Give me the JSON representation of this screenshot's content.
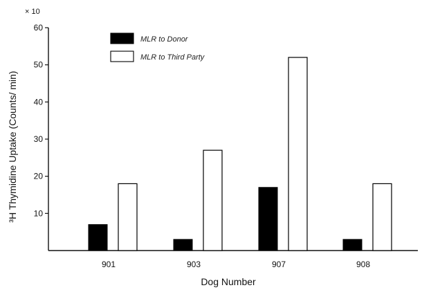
{
  "chart_data": {
    "type": "bar",
    "title": "",
    "xlabel": "Dog Number",
    "ylabel": "³H Thymidine Uptake (Counts/ min)",
    "y_multiplier": "× 10",
    "categories": [
      "901",
      "903",
      "907",
      "908"
    ],
    "ylim": [
      0,
      60
    ],
    "yticks": [
      10,
      20,
      30,
      40,
      50,
      60
    ],
    "grid": false,
    "legend_position": "top-left",
    "series": [
      {
        "name": "MLR to Donor",
        "values": [
          7,
          3,
          17,
          3
        ],
        "color": "#000000",
        "fill": "solid"
      },
      {
        "name": "MLR to Third Party",
        "values": [
          18,
          27,
          52,
          18
        ],
        "color": "#000000",
        "fill": "outline"
      }
    ]
  }
}
